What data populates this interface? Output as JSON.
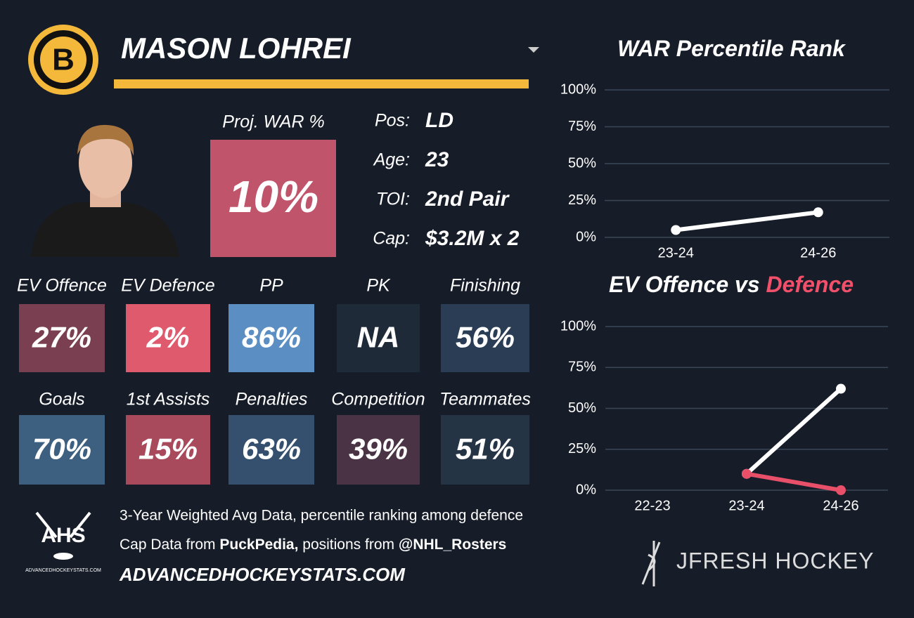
{
  "player": {
    "name": "MASON LOHREI"
  },
  "proj_war": {
    "label": "Proj. WAR %",
    "value": "10%"
  },
  "info": [
    {
      "label": "Pos:",
      "value": "LD"
    },
    {
      "label": "Age:",
      "value": "23"
    },
    {
      "label": "TOI:",
      "value": "2nd Pair"
    },
    {
      "label": "Cap:",
      "value": "$3.2M x 2"
    }
  ],
  "tiles": [
    {
      "label": "EV Offence",
      "value": "27%",
      "color": "#7a4052"
    },
    {
      "label": "EV Defence",
      "value": "2%",
      "color": "#e05a6e"
    },
    {
      "label": "PP",
      "value": "86%",
      "color": "#5b8fc4"
    },
    {
      "label": "PK",
      "value": "NA",
      "color": "#1f2a38"
    },
    {
      "label": "Finishing",
      "value": "56%",
      "color": "#2a3d55"
    },
    {
      "label": "Goals",
      "value": "70%",
      "color": "#3e6080"
    },
    {
      "label": "1st Assists",
      "value": "15%",
      "color": "#a84a5c"
    },
    {
      "label": "Penalties",
      "value": "63%",
      "color": "#34506e"
    },
    {
      "label": "Competition",
      "value": "39%",
      "color": "#4a3344"
    },
    {
      "label": "Teammates",
      "value": "51%",
      "color": "#253445"
    }
  ],
  "footer": {
    "line1": "3-Year Weighted Avg Data, percentile ranking among defence",
    "line2": [
      "Cap Data from ",
      "PuckPedia,",
      " positions from ",
      "@NHL_Rosters"
    ],
    "url": "ADVANCEDHOCKEYSTATS.COM",
    "ahs": "AHS",
    "ahs_small": "ADVANCEDHOCKEYSTATS.COM",
    "brand": "JFRESH HOCKEY"
  },
  "charts": [
    {
      "type": "line",
      "title": "WAR Percentile Rank",
      "categories": [
        "23-24",
        "24-26"
      ],
      "series": [
        {
          "color": "#ffffff",
          "values": [
            5,
            17
          ]
        }
      ],
      "ylim": [
        0,
        100
      ],
      "yticks": [
        {
          "value": 0,
          "label": "0%"
        },
        {
          "value": 25,
          "label": "25%"
        },
        {
          "value": 50,
          "label": "50%"
        },
        {
          "value": 75,
          "label": "75%"
        },
        {
          "value": 100,
          "label": "100%"
        }
      ],
      "grid": true
    },
    {
      "type": "line",
      "title": "EV Offence vs ",
      "title_highlight": "Defence",
      "highlight_color": "#f0506a",
      "categories": [
        "22-23",
        "23-24",
        "24-26"
      ],
      "series": [
        {
          "color": "#ffffff",
          "values": [
            null,
            10,
            62
          ]
        },
        {
          "color": "#e8506a",
          "values": [
            null,
            10,
            0
          ]
        }
      ],
      "ylim": [
        0,
        100
      ],
      "yticks": [
        {
          "value": 0,
          "label": "0%"
        },
        {
          "value": 25,
          "label": "25%"
        },
        {
          "value": 50,
          "label": "50%"
        },
        {
          "value": 75,
          "label": "75%"
        },
        {
          "value": 100,
          "label": "100%"
        }
      ],
      "grid": true
    }
  ]
}
